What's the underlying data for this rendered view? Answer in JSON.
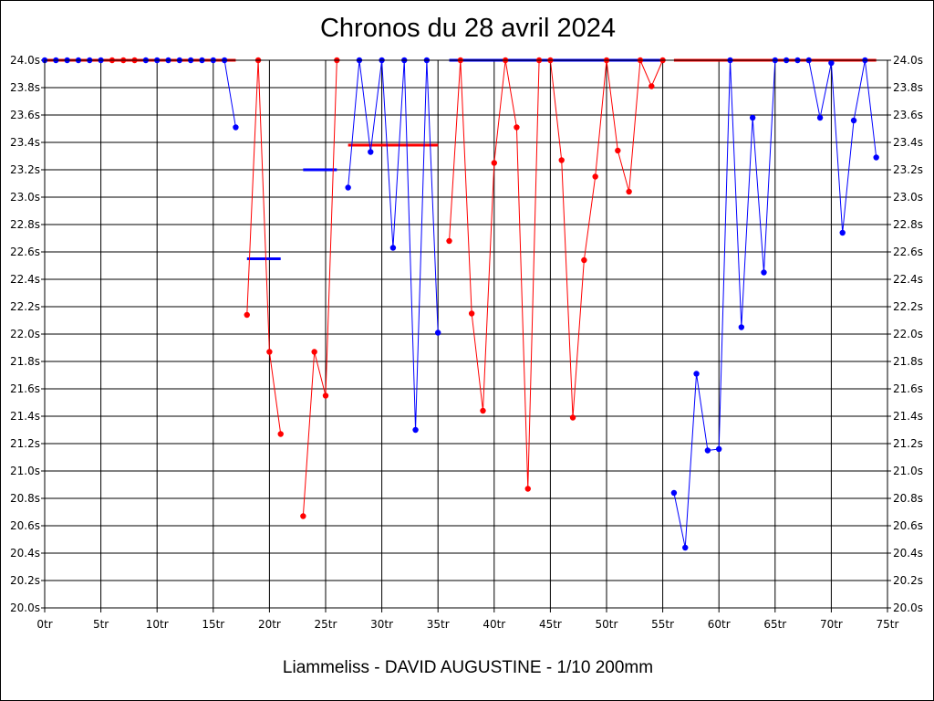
{
  "chart_data": {
    "type": "line",
    "title": "Chronos du 28 avril 2024",
    "footer": "Liammeliss - DAVID AUGUSTINE - 1/10 200mm",
    "xlabel": "",
    "ylabel": "",
    "xlim": [
      0,
      75
    ],
    "ylim": [
      20.0,
      24.0
    ],
    "x_tick_labels": [
      "0tr",
      "5tr",
      "10tr",
      "15tr",
      "20tr",
      "25tr",
      "30tr",
      "35tr",
      "40tr",
      "45tr",
      "50tr",
      "55tr",
      "60tr",
      "65tr",
      "70tr",
      "75tr"
    ],
    "y_tick_labels": [
      "20.0s",
      "20.2s",
      "20.4s",
      "20.6s",
      "20.8s",
      "21.0s",
      "21.2s",
      "21.4s",
      "21.6s",
      "21.8s",
      "22.0s",
      "22.2s",
      "22.4s",
      "22.6s",
      "22.8s",
      "23.0s",
      "23.2s",
      "23.4s",
      "23.6s",
      "23.8s",
      "24.0s"
    ],
    "grid": true,
    "colors": {
      "blue": "#0000ff",
      "red": "#ff0000"
    },
    "series": [
      {
        "color": "blue",
        "x": [
          0,
          1,
          2,
          3,
          4,
          5
        ],
        "y": [
          24.0,
          24.0,
          24.0,
          24.0,
          24.0,
          24.0
        ]
      },
      {
        "color": "red",
        "x": [
          6,
          7,
          8
        ],
        "y": [
          24.0,
          24.0,
          24.0
        ]
      },
      {
        "color": "blue",
        "x": [
          9,
          10,
          11,
          12,
          13,
          14,
          15,
          16,
          17
        ],
        "y": [
          24.0,
          24.0,
          24.0,
          24.0,
          24.0,
          24.0,
          24.0,
          24.0,
          23.51
        ]
      },
      {
        "color": "red",
        "x": [
          18,
          19,
          20,
          21
        ],
        "y": [
          22.14,
          24.0,
          21.87,
          21.27
        ]
      },
      {
        "color": "red",
        "x": [
          23,
          24,
          25,
          26
        ],
        "y": [
          20.67,
          21.87,
          21.55,
          24.0
        ]
      },
      {
        "color": "blue",
        "x": [
          27,
          28,
          29,
          30,
          31,
          32,
          33,
          34,
          35
        ],
        "y": [
          23.07,
          24.0,
          23.33,
          24.0,
          22.63,
          24.0,
          21.3,
          24.0,
          22.01
        ]
      },
      {
        "color": "red",
        "x": [
          36,
          37,
          38,
          39,
          40,
          41,
          42,
          43,
          44,
          45,
          46,
          47,
          48,
          49,
          50,
          51,
          52,
          53,
          54,
          55
        ],
        "y": [
          22.68,
          24.0,
          22.15,
          21.44,
          23.25,
          24.0,
          23.51,
          20.87,
          24.0,
          24.0,
          23.27,
          21.39,
          22.54,
          23.15,
          24.0,
          23.34,
          23.04,
          24.0,
          23.81,
          24.0
        ]
      },
      {
        "color": "blue",
        "x": [
          56,
          57,
          58,
          59,
          60,
          61,
          62,
          63,
          64,
          65,
          66,
          67,
          68,
          69,
          70,
          71,
          72,
          73,
          74
        ],
        "y": [
          20.84,
          20.44,
          21.71,
          21.15,
          21.16,
          24.0,
          22.05,
          23.58,
          22.45,
          24.0,
          24.0,
          24.0,
          24.0,
          23.58,
          23.98,
          22.74,
          23.56,
          24.0,
          23.29
        ]
      }
    ],
    "average_lines": [
      {
        "color": "red",
        "x_start": 0,
        "x_end": 17,
        "y": 24.0
      },
      {
        "color": "blue",
        "x_start": 18,
        "x_end": 21,
        "y": 22.55
      },
      {
        "color": "blue",
        "x_start": 23,
        "x_end": 26,
        "y": 23.2
      },
      {
        "color": "red",
        "x_start": 27,
        "x_end": 35,
        "y": 23.38
      },
      {
        "color": "blue",
        "x_start": 36,
        "x_end": 55,
        "y": 24.0
      },
      {
        "color": "red",
        "x_start": 56,
        "x_end": 74,
        "y": 24.0
      }
    ]
  }
}
